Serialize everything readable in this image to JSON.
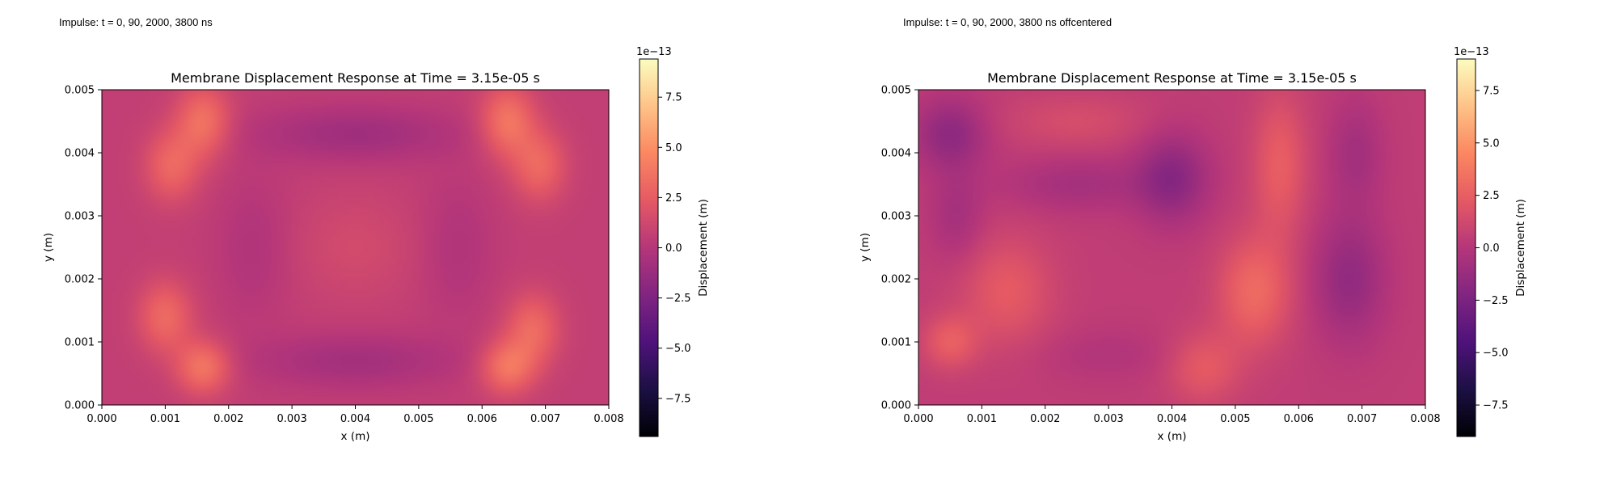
{
  "figure": {
    "colormap": "magma",
    "colormap_stops": [
      "#000004",
      "#1c1044",
      "#4f127b",
      "#812581",
      "#b5367a",
      "#e55964",
      "#fb8761",
      "#fec287",
      "#fcfdbf"
    ]
  },
  "captions": [
    "Impulse: t = 0, 90, 2000, 3800 ns",
    "Impulse: t = 0, 90, 2000, 3800 ns offcentered"
  ],
  "chart_data": [
    {
      "type": "heatmap",
      "title": "Membrane Displacement Response at Time = 3.15e-05 s",
      "xlabel": "x (m)",
      "ylabel": "y (m)",
      "xlim": [
        0,
        0.008
      ],
      "ylim": [
        0,
        0.005
      ],
      "xticks": [
        "0.000",
        "0.001",
        "0.002",
        "0.003",
        "0.004",
        "0.005",
        "0.006",
        "0.007",
        "0.008"
      ],
      "yticks": [
        "0.000",
        "0.001",
        "0.002",
        "0.003",
        "0.004",
        "0.005"
      ],
      "z_background": 0.6,
      "features": [
        {
          "x": 0.0016,
          "y": 0.0045,
          "z": 3.0,
          "sx": 0.0003,
          "sy": 0.0004
        },
        {
          "x": 0.0011,
          "y": 0.0038,
          "z": 2.5,
          "sx": 0.0003,
          "sy": 0.0004
        },
        {
          "x": 0.001,
          "y": 0.0014,
          "z": 2.6,
          "sx": 0.0003,
          "sy": 0.0004
        },
        {
          "x": 0.0016,
          "y": 0.0006,
          "z": 3.2,
          "sx": 0.0003,
          "sy": 0.0003
        },
        {
          "x": 0.0064,
          "y": 0.0045,
          "z": 3.2,
          "sx": 0.0003,
          "sy": 0.0004
        },
        {
          "x": 0.0069,
          "y": 0.0038,
          "z": 2.5,
          "sx": 0.0003,
          "sy": 0.0004
        },
        {
          "x": 0.0068,
          "y": 0.0012,
          "z": 2.6,
          "sx": 0.0003,
          "sy": 0.0004
        },
        {
          "x": 0.0064,
          "y": 0.0006,
          "z": 3.2,
          "sx": 0.0003,
          "sy": 0.0003
        },
        {
          "x": 0.004,
          "y": 0.0043,
          "z": -1.6,
          "sx": 0.0011,
          "sy": 0.0003
        },
        {
          "x": 0.004,
          "y": 0.0007,
          "z": -1.4,
          "sx": 0.0011,
          "sy": 0.0003
        },
        {
          "x": 0.0024,
          "y": 0.0025,
          "z": -0.8,
          "sx": 0.0004,
          "sy": 0.0008
        },
        {
          "x": 0.0056,
          "y": 0.0025,
          "z": -0.8,
          "sx": 0.0004,
          "sy": 0.0008
        },
        {
          "x": 0.004,
          "y": 0.0025,
          "z": 0.8,
          "sx": 0.0007,
          "sy": 0.0006
        }
      ],
      "colorbar": {
        "label": "Displacement (m)",
        "offset_label": "1e−13",
        "range": [
          -9.4,
          9.4
        ],
        "ticks": [
          "7.5",
          "5.0",
          "2.5",
          "0.0",
          "−2.5",
          "−5.0",
          "−7.5"
        ],
        "tick_values": [
          7.5,
          5.0,
          2.5,
          0.0,
          -2.5,
          -5.0,
          -7.5
        ]
      }
    },
    {
      "type": "heatmap",
      "title": "Membrane Displacement Response at Time = 3.15e-05 s",
      "xlabel": "x (m)",
      "ylabel": "y (m)",
      "xlim": [
        0,
        0.008
      ],
      "ylim": [
        0,
        0.005
      ],
      "xticks": [
        "0.000",
        "0.001",
        "0.002",
        "0.003",
        "0.004",
        "0.005",
        "0.006",
        "0.007",
        "0.008"
      ],
      "yticks": [
        "0.000",
        "0.001",
        "0.002",
        "0.003",
        "0.004",
        "0.005"
      ],
      "z_background": 0.5,
      "features": [
        {
          "x": 0.0005,
          "y": 0.0043,
          "z": -2.2,
          "sx": 0.0004,
          "sy": 0.0004
        },
        {
          "x": 0.0006,
          "y": 0.003,
          "z": -1.2,
          "sx": 0.0003,
          "sy": 0.0005
        },
        {
          "x": 0.004,
          "y": 0.0036,
          "z": -2.4,
          "sx": 0.0004,
          "sy": 0.0005
        },
        {
          "x": 0.0025,
          "y": 0.0035,
          "z": -1.2,
          "sx": 0.0008,
          "sy": 0.0003
        },
        {
          "x": 0.0068,
          "y": 0.002,
          "z": -2.0,
          "sx": 0.0004,
          "sy": 0.0007
        },
        {
          "x": 0.0069,
          "y": 0.004,
          "z": -1.3,
          "sx": 0.0003,
          "sy": 0.0006
        },
        {
          "x": 0.0057,
          "y": 0.0038,
          "z": 2.0,
          "sx": 0.0003,
          "sy": 0.0008
        },
        {
          "x": 0.0053,
          "y": 0.0018,
          "z": 2.6,
          "sx": 0.0004,
          "sy": 0.0006
        },
        {
          "x": 0.0045,
          "y": 0.0006,
          "z": 1.8,
          "sx": 0.0004,
          "sy": 0.0004
        },
        {
          "x": 0.0014,
          "y": 0.0018,
          "z": 1.8,
          "sx": 0.0005,
          "sy": 0.0006
        },
        {
          "x": 0.0005,
          "y": 0.001,
          "z": 2.0,
          "sx": 0.0003,
          "sy": 0.0003
        },
        {
          "x": 0.003,
          "y": 0.0008,
          "z": -0.6,
          "sx": 0.0008,
          "sy": 0.0003
        },
        {
          "x": 0.0025,
          "y": 0.0045,
          "z": 1.0,
          "sx": 0.0008,
          "sy": 0.0003
        }
      ],
      "colorbar": {
        "label": "Displacement (m)",
        "offset_label": "1e−13",
        "range": [
          -9.0,
          9.0
        ],
        "ticks": [
          "7.5",
          "5.0",
          "2.5",
          "0.0",
          "−2.5",
          "−5.0",
          "−7.5"
        ],
        "tick_values": [
          7.5,
          5.0,
          2.5,
          0.0,
          -2.5,
          -5.0,
          -7.5
        ]
      }
    }
  ]
}
